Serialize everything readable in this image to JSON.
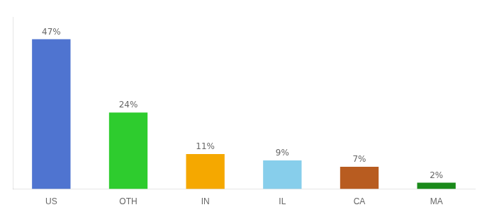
{
  "chart_data": {
    "type": "bar",
    "categories": [
      "US",
      "OTH",
      "IN",
      "IL",
      "CA",
      "MA"
    ],
    "values": [
      47,
      24,
      11,
      9,
      7,
      2
    ],
    "value_labels": [
      "47%",
      "24%",
      "11%",
      "9%",
      "7%",
      "2%"
    ],
    "colors": [
      "#4f74d0",
      "#2ecc2e",
      "#f5a800",
      "#87ceeb",
      "#b85c20",
      "#1a8a1a"
    ],
    "ylim": [
      0,
      54
    ],
    "data_labels": true,
    "tick_labels": "x",
    "grid": false
  }
}
